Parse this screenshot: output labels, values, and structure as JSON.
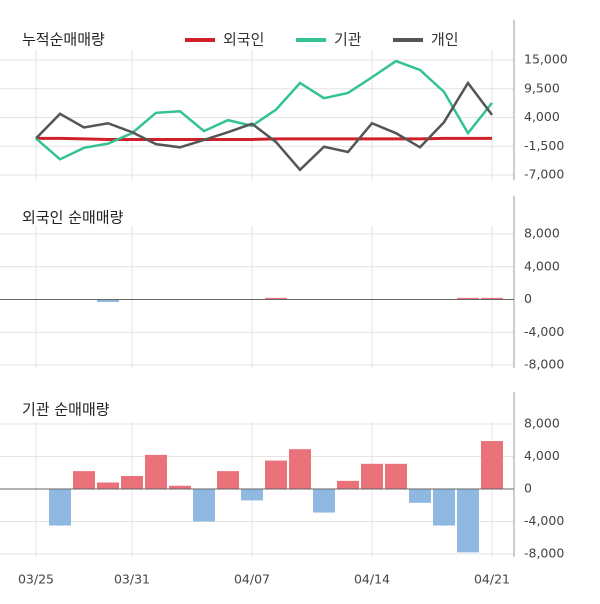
{
  "chart_data": [
    {
      "type": "line",
      "title": "누적순매매량",
      "series": [
        {
          "name": "외국인",
          "color": "#d0202a",
          "values": [
            0,
            0,
            -100,
            -200,
            -200,
            -200,
            -200,
            -200,
            -200,
            -200,
            -100,
            -100,
            -100,
            -100,
            -100,
            -100,
            -100,
            0,
            0,
            0
          ]
        },
        {
          "name": "기관",
          "color": "#33c38f",
          "values": [
            0,
            -4000,
            -1800,
            -1000,
            1000,
            4900,
            5200,
            1400,
            3500,
            2400,
            5500,
            10600,
            7700,
            8700,
            11700,
            14800,
            13100,
            8900,
            1000,
            6800
          ]
        },
        {
          "name": "개인",
          "color": "#555555",
          "values": [
            0,
            4700,
            2100,
            2900,
            1200,
            -1100,
            -1700,
            -300,
            1200,
            2800,
            -700,
            -6000,
            -1600,
            -2600,
            2900,
            1000,
            -1700,
            3100,
            10600,
            4500
          ]
        }
      ],
      "ylim": [
        -7000,
        15000
      ],
      "yticks": [
        {
          "value": 15000,
          "label": "15,000"
        },
        {
          "value": 9500,
          "label": "9,500"
        },
        {
          "value": 4000,
          "label": "4,000"
        },
        {
          "value": -1500,
          "label": "-1,500"
        },
        {
          "value": -7000,
          "label": "-7,000"
        }
      ]
    },
    {
      "type": "bar",
      "title": "외국인 순매매량",
      "pos_color": "#e8717a",
      "neg_color": "#8fb8e0",
      "values": [
        0,
        0,
        0,
        -300,
        0,
        0,
        0,
        0,
        0,
        0,
        200,
        0,
        0,
        0,
        0,
        0,
        0,
        0,
        200,
        200
      ],
      "ylim": [
        -8000,
        8000
      ],
      "yticks": [
        {
          "value": 8000,
          "label": "8,000"
        },
        {
          "value": 4000,
          "label": "4,000"
        },
        0,
        {
          "value": -4000,
          "label": "-4,000"
        },
        {
          "value": -8000,
          "label": "-8,000"
        }
      ]
    },
    {
      "type": "bar",
      "title": "기관 순매매량",
      "pos_color": "#e8717a",
      "neg_color": "#8fb8e0",
      "categories": [
        "03/25",
        null,
        null,
        null,
        "03/31",
        null,
        null,
        null,
        null,
        "04/07",
        null,
        null,
        null,
        null,
        "04/14",
        null,
        null,
        null,
        null,
        "04/21"
      ],
      "values": [
        0,
        -4500,
        2200,
        800,
        1600,
        4200,
        400,
        -4000,
        2200,
        -1400,
        3500,
        4900,
        -2900,
        1000,
        3100,
        3100,
        -1700,
        -4500,
        -7800,
        5900
      ],
      "ylim": [
        -8000,
        8000
      ],
      "yticks": [
        {
          "value": 8000,
          "label": "8,000"
        },
        {
          "value": 4000,
          "label": "4,000"
        },
        0,
        {
          "value": -4000,
          "label": "-4,000"
        },
        {
          "value": -8000,
          "label": "-8,000"
        }
      ]
    }
  ]
}
